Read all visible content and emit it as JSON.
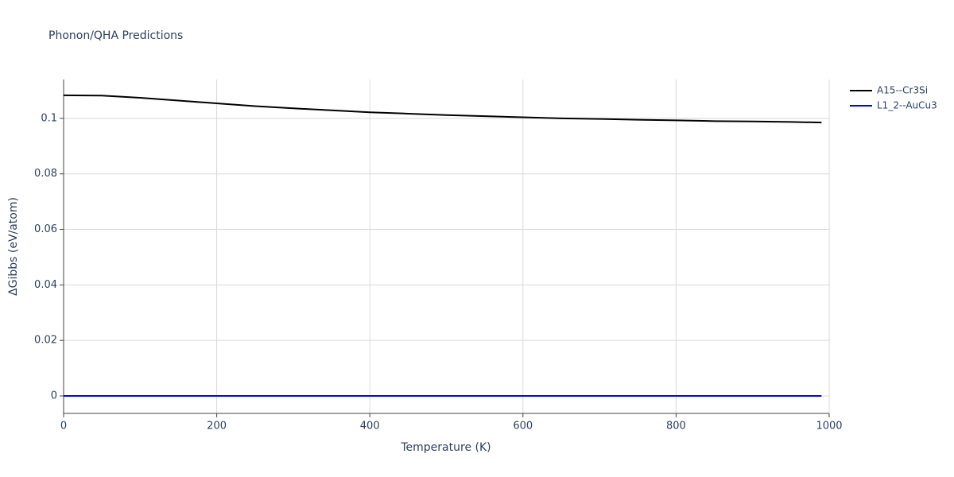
{
  "chart_data": {
    "type": "line",
    "title": "Phonon/QHA Predictions",
    "x_label": "Temperature (K)",
    "y_label": "ΔGibbs (eV/atom)",
    "x": [
      0,
      50,
      100,
      150,
      200,
      250,
      300,
      350,
      400,
      450,
      500,
      550,
      600,
      650,
      700,
      750,
      800,
      850,
      900,
      950,
      990
    ],
    "series": [
      {
        "name": "A15--Cr3Si",
        "color": "#000000",
        "values": [
          0.1083,
          0.1082,
          0.1074,
          0.1064,
          0.1054,
          0.1044,
          0.1036,
          0.1029,
          0.1022,
          0.1017,
          0.1012,
          0.1008,
          0.1004,
          0.1,
          0.0998,
          0.0995,
          0.0993,
          0.099,
          0.0989,
          0.0987,
          0.0985
        ]
      },
      {
        "name": "L1_2--AuCu3",
        "color": "#0000ff",
        "values": [
          0,
          0,
          0,
          0,
          0,
          0,
          0,
          0,
          0,
          0,
          0,
          0,
          0,
          0,
          0,
          0,
          0,
          0,
          0,
          0,
          0
        ]
      }
    ],
    "xlim": [
      0,
      1000
    ],
    "xticks": [
      0,
      200,
      400,
      600,
      800,
      1000
    ],
    "ylim": [
      -0.0063,
      0.114
    ],
    "yticks": [
      0,
      0.02,
      0.04,
      0.06,
      0.08,
      0.1
    ],
    "grid": true,
    "legend": "top-right"
  }
}
